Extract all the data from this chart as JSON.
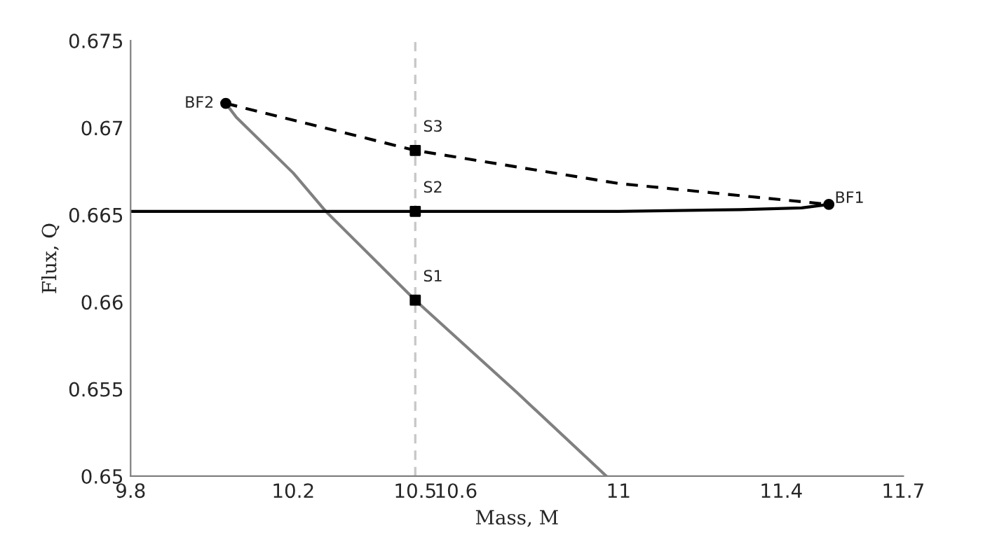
{
  "chart_data": {
    "type": "line",
    "xlabel": "Mass, M",
    "ylabel": "Flux, Q",
    "xlim": [
      9.8,
      11.7
    ],
    "xticks": [
      9.8,
      10.2,
      10.5,
      10.6,
      11,
      11.4,
      11.7
    ],
    "ylim": [
      0.65,
      0.675
    ],
    "yticks": [
      0.65,
      0.655,
      0.66,
      0.665,
      0.67,
      0.675
    ],
    "grid": false,
    "legend": false,
    "series": [
      {
        "color": "#808080",
        "line_style": "solid",
        "x": [
          10.034,
          10.06,
          10.2,
          10.28,
          10.5,
          10.75,
          10.97
        ],
        "values": [
          0.6714,
          0.6706,
          0.6674,
          0.6652,
          0.6601,
          0.6548,
          0.65
        ]
      },
      {
        "color": "#000000",
        "line_style": "solid",
        "x": [
          9.8,
          10.5,
          11.0,
          11.3,
          11.45,
          11.517
        ],
        "values": [
          0.6652,
          0.6652,
          0.6652,
          0.6653,
          0.6654,
          0.6656
        ]
      },
      {
        "color": "#000000",
        "line_style": "dashed",
        "x": [
          10.034,
          10.5,
          11.0,
          11.517
        ],
        "values": [
          0.6714,
          0.6687,
          0.6668,
          0.6656
        ]
      },
      {
        "type": "scatter",
        "color": "#000000",
        "marker": "circle",
        "x": [
          10.034,
          11.517
        ],
        "values": [
          0.6714,
          0.6656
        ]
      },
      {
        "type": "scatter",
        "color": "#000000",
        "marker": "square",
        "x": [
          10.5,
          10.5,
          10.5
        ],
        "values": [
          0.6601,
          0.6652,
          0.6687
        ]
      }
    ],
    "ref_lines": [
      {
        "axis": "x",
        "value": 10.5,
        "color": "#c8c8c8",
        "line_style": "dashed"
      }
    ],
    "annotations": [
      {
        "text": "BF2",
        "x": 10.034,
        "y": 0.6714
      },
      {
        "text": "BF1",
        "x": 11.517,
        "y": 0.6656
      },
      {
        "text": "S1",
        "x": 10.5,
        "y": 0.6601
      },
      {
        "text": "S2",
        "x": 10.5,
        "y": 0.6652
      },
      {
        "text": "S3",
        "x": 10.5,
        "y": 0.6687
      }
    ]
  }
}
